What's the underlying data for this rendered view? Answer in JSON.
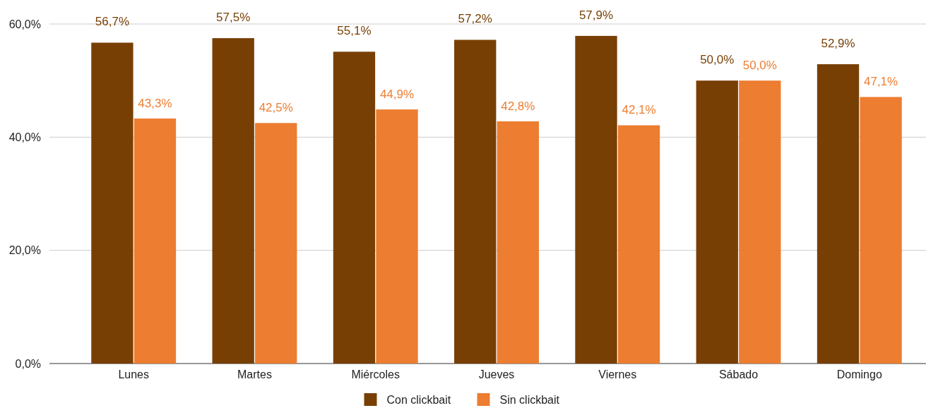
{
  "chart_data": {
    "type": "bar",
    "categories": [
      "Lunes",
      "Martes",
      "Miércoles",
      "Jueves",
      "Viernes",
      "Sábado",
      "Domingo"
    ],
    "series": [
      {
        "name": "Con clickbait",
        "color": "#783f04",
        "values": [
          56.7,
          57.5,
          55.1,
          57.2,
          57.9,
          50.0,
          52.9
        ],
        "value_labels": [
          "56,7%",
          "57,5%",
          "55,1%",
          "57,2%",
          "57,9%",
          "50,0%",
          "52,9%"
        ]
      },
      {
        "name": "Sin clickbait",
        "color": "#ed7d31",
        "values": [
          43.3,
          42.5,
          44.9,
          42.8,
          42.1,
          50.0,
          47.1
        ],
        "value_labels": [
          "43,3%",
          "42,5%",
          "44,9%",
          "42,8%",
          "42,1%",
          "50,0%",
          "47,1%"
        ]
      }
    ],
    "ylim": [
      0,
      60
    ],
    "yticks": [
      {
        "value": 0,
        "label": "0,0%"
      },
      {
        "value": 20,
        "label": "20,0%"
      },
      {
        "value": 40,
        "label": "40,0%"
      },
      {
        "value": 60,
        "label": "60,0%"
      }
    ],
    "grid": "y",
    "legend": "bottom"
  }
}
